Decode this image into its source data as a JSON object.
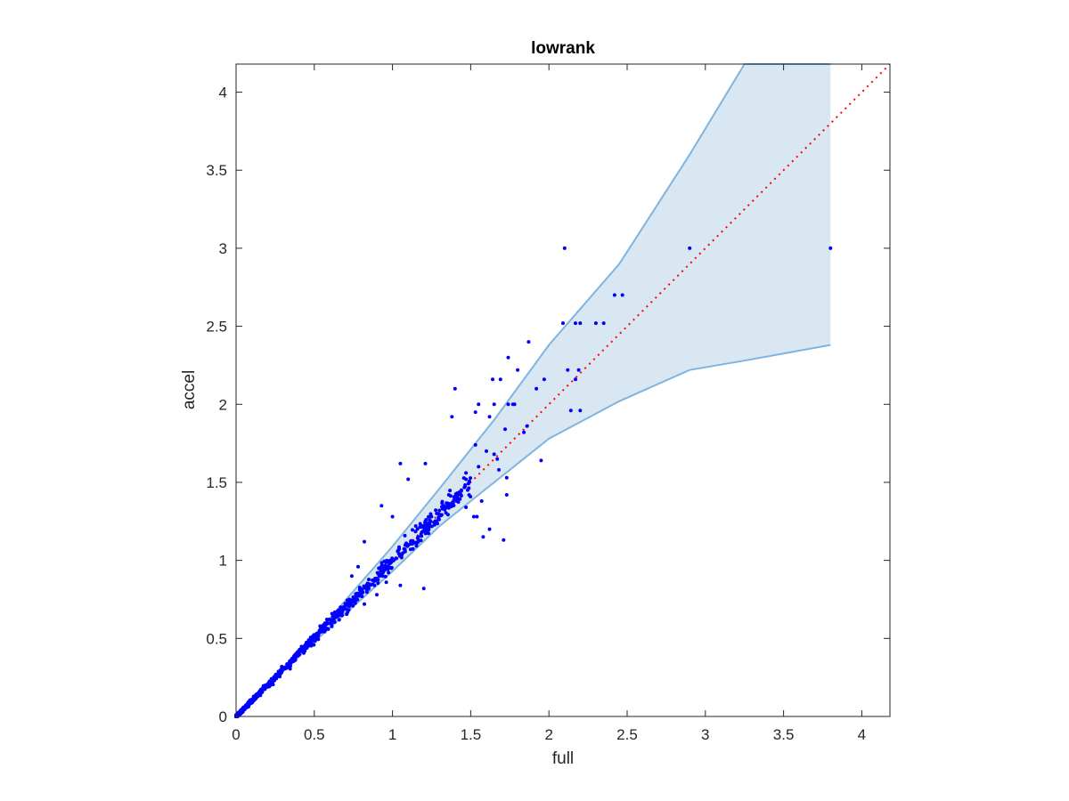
{
  "chart_data": {
    "type": "scatter",
    "title": "lowrank",
    "xlabel": "full",
    "ylabel": "accel",
    "xlim": [
      0,
      4.18
    ],
    "ylim": [
      0,
      4.18
    ],
    "xticks": [
      "0",
      "0.5",
      "1",
      "1.5",
      "2",
      "2.5",
      "3",
      "3.5",
      "4"
    ],
    "yticks": [
      "0",
      "0.5",
      "1",
      "1.5",
      "2",
      "2.5",
      "3",
      "3.5",
      "4"
    ],
    "grid": false,
    "box": true,
    "colors": {
      "points": "#0000ff",
      "band_fill": "#d9e7f3",
      "band_edge": "#7fb4df",
      "reference_line": "#ff0000",
      "axes": "#262626"
    },
    "reference_line": {
      "style": "dotted",
      "x": [
        0,
        4.18
      ],
      "y": [
        0,
        4.18
      ]
    },
    "band": {
      "x": [
        0,
        0.3,
        0.6,
        1.0,
        1.3,
        1.65,
        2.0,
        2.45,
        2.9,
        3.25,
        3.8
      ],
      "upper": [
        0,
        0.31,
        0.63,
        1.09,
        1.46,
        1.9,
        2.38,
        2.9,
        3.6,
        4.18,
        4.18
      ],
      "lower": [
        0,
        0.29,
        0.57,
        0.93,
        1.22,
        1.5,
        1.78,
        2.02,
        2.22,
        2.28,
        2.38
      ]
    },
    "highlight_points": [
      [
        2.1,
        3.0
      ],
      [
        2.9,
        3.0
      ],
      [
        3.8,
        3.0
      ],
      [
        2.42,
        2.7
      ],
      [
        2.47,
        2.7
      ],
      [
        2.09,
        2.52
      ],
      [
        2.17,
        2.52
      ],
      [
        2.2,
        2.52
      ],
      [
        2.3,
        2.52
      ],
      [
        2.35,
        2.52
      ],
      [
        1.87,
        2.4
      ],
      [
        1.74,
        2.3
      ],
      [
        1.8,
        2.22
      ],
      [
        2.12,
        2.22
      ],
      [
        2.19,
        2.22
      ],
      [
        1.97,
        2.16
      ],
      [
        2.17,
        2.16
      ],
      [
        1.64,
        2.16
      ],
      [
        1.69,
        2.16
      ],
      [
        1.4,
        2.1
      ],
      [
        1.92,
        2.1
      ],
      [
        1.74,
        2.0
      ],
      [
        1.78,
        2.0
      ],
      [
        1.65,
        2.0
      ],
      [
        1.77,
        2.0
      ],
      [
        2.14,
        1.96
      ],
      [
        2.2,
        1.96
      ],
      [
        1.55,
        2.0
      ],
      [
        1.62,
        1.92
      ],
      [
        1.38,
        1.92
      ],
      [
        1.53,
        1.95
      ],
      [
        1.86,
        1.86
      ],
      [
        1.72,
        1.84
      ],
      [
        1.84,
        1.82
      ],
      [
        1.53,
        1.74
      ],
      [
        1.6,
        1.7
      ],
      [
        1.65,
        1.68
      ],
      [
        1.67,
        1.65
      ],
      [
        1.95,
        1.64
      ],
      [
        1.55,
        1.6
      ],
      [
        1.68,
        1.58
      ],
      [
        1.73,
        1.53
      ],
      [
        1.47,
        1.52
      ],
      [
        1.73,
        1.42
      ],
      [
        1.57,
        1.38
      ],
      [
        1.05,
        1.62
      ],
      [
        1.21,
        1.62
      ],
      [
        1.47,
        1.56
      ],
      [
        1.44,
        1.45
      ],
      [
        1.36,
        1.42
      ],
      [
        1.41,
        1.38
      ],
      [
        1.3,
        1.32
      ],
      [
        1.54,
        1.28
      ],
      [
        1.62,
        1.2
      ],
      [
        1.58,
        1.15
      ],
      [
        1.71,
        1.13
      ],
      [
        1.52,
        1.28
      ],
      [
        1.47,
        1.34
      ],
      [
        0.93,
        1.35
      ],
      [
        0.82,
        1.12
      ],
      [
        1.1,
        1.52
      ],
      [
        1.0,
        1.28
      ],
      [
        1.2,
        0.82
      ],
      [
        1.05,
        0.84
      ],
      [
        0.96,
        0.86
      ],
      [
        0.9,
        0.78
      ],
      [
        0.82,
        0.72
      ],
      [
        0.74,
        0.9
      ],
      [
        0.78,
        0.96
      ]
    ],
    "cloud": {
      "count": 1100,
      "x_range": [
        0,
        1.5
      ],
      "trend": "y ≈ x"
    }
  }
}
